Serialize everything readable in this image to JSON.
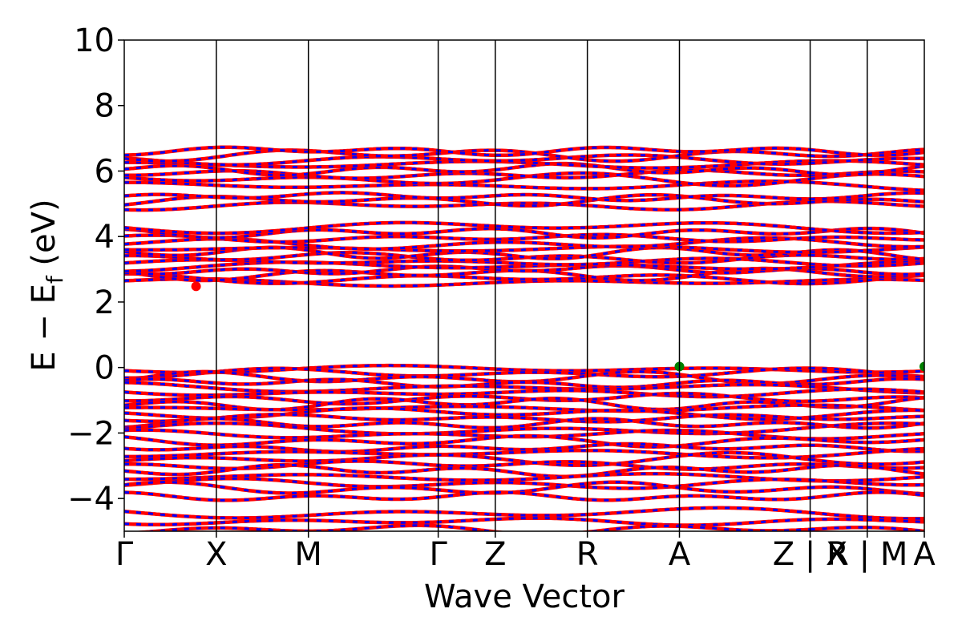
{
  "chart_data": {
    "type": "line",
    "title": "",
    "xlabel": "Wave Vector",
    "ylabel": "E − E_f (eV)",
    "ylabel_parts": {
      "main": "E − E",
      "sub": "f",
      "unit": " (eV)"
    },
    "ylim": [
      -5,
      10
    ],
    "yticks": [
      {
        "value": 10,
        "label": "10"
      },
      {
        "value": 8,
        "label": "8"
      },
      {
        "value": 6,
        "label": "6"
      },
      {
        "value": 4,
        "label": "4"
      },
      {
        "value": 2,
        "label": "2"
      },
      {
        "value": 0,
        "label": "0"
      },
      {
        "value": -2,
        "label": "−2"
      },
      {
        "value": -4,
        "label": "−4"
      }
    ],
    "kpath": [
      {
        "label": "Γ",
        "x": 0.0
      },
      {
        "label": "X",
        "x": 1.0
      },
      {
        "label": "M",
        "x": 2.0
      },
      {
        "label": "Γ",
        "x": 3.41
      },
      {
        "label": "Z",
        "x": 4.03
      },
      {
        "label": "R",
        "x": 5.03
      },
      {
        "label": "A",
        "x": 6.03
      },
      {
        "label": "Z | X",
        "x": 7.45
      },
      {
        "label": "R | M",
        "x": 8.07
      },
      {
        "label": "A",
        "x": 8.69
      }
    ],
    "segments": [
      [
        0.0,
        7.45
      ],
      [
        7.45,
        8.07
      ],
      [
        8.07,
        8.69
      ]
    ],
    "series": [
      {
        "color": "#ff0000",
        "style": "solid"
      },
      {
        "color": "#0000ff",
        "style": "dashed"
      }
    ],
    "band_groups": {
      "conduction": [
        2.6,
        2.72,
        2.85,
        2.98,
        3.1,
        3.22,
        3.35,
        3.48,
        3.62,
        3.78,
        3.95,
        4.12,
        4.3,
        4.95,
        5.1,
        5.22,
        5.55,
        5.75,
        5.9,
        6.05,
        6.2,
        6.35,
        6.5,
        6.62
      ],
      "valence": [
        -0.05,
        -0.18,
        -0.32,
        -0.48,
        -0.62,
        -0.78,
        -0.95,
        -1.1,
        -1.25,
        -1.4,
        -1.55,
        -1.72,
        -1.9,
        -2.05,
        -2.25,
        -2.45,
        -2.62,
        -2.8,
        -2.98,
        -3.15,
        -3.35,
        -3.55,
        -3.7,
        -3.95,
        -4.45,
        -4.7,
        -4.95
      ]
    },
    "markers": [
      {
        "x": 0.78,
        "y": 2.48,
        "color": "#ff0000"
      },
      {
        "x": 6.03,
        "y": 0.03,
        "color": "#008000"
      },
      {
        "x": 8.69,
        "y": 0.03,
        "color": "#008000"
      }
    ],
    "grid": false,
    "legend": "none"
  }
}
